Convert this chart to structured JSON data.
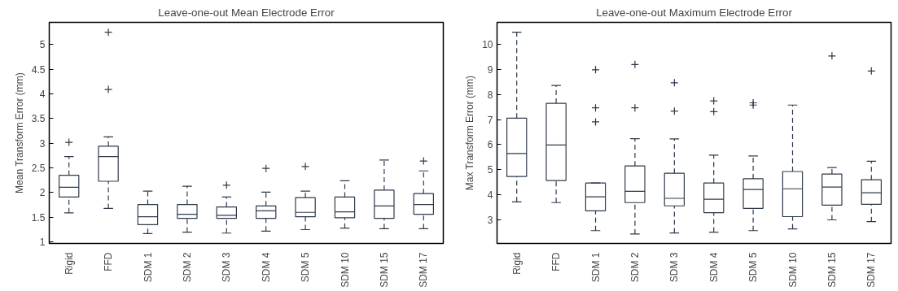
{
  "chart_data": [
    {
      "type": "box",
      "title": "Leave-one-out Mean Electrode Error",
      "ylabel": "Mean Transform Error (mm)",
      "categories": [
        "Rigid",
        "FFD",
        "SDM 1",
        "SDM 2",
        "SDM 3",
        "SDM 4",
        "SDM 5",
        "SDM 10",
        "SDM 15",
        "SDM 17"
      ],
      "ylim": [
        0.97,
        5.45
      ],
      "yticks": [
        1,
        1.5,
        2,
        2.5,
        3,
        3.5,
        4,
        4.5,
        5
      ],
      "grid": false,
      "marker": "cross",
      "color": "#2e3a4a",
      "boxes": [
        {
          "low": 1.59,
          "q1": 1.91,
          "median": 2.11,
          "q3": 2.35,
          "high": 2.73,
          "outliers": [
            3.02
          ]
        },
        {
          "low": 1.68,
          "q1": 2.23,
          "median": 2.73,
          "q3": 2.94,
          "high": 3.13,
          "outliers": [
            4.09,
            5.25
          ]
        },
        {
          "low": 1.17,
          "q1": 1.35,
          "median": 1.51,
          "q3": 1.76,
          "high": 2.03
        },
        {
          "low": 1.2,
          "q1": 1.48,
          "median": 1.56,
          "q3": 1.76,
          "high": 2.13
        },
        {
          "low": 1.18,
          "q1": 1.48,
          "median": 1.54,
          "q3": 1.71,
          "high": 1.91,
          "outliers": [
            2.15
          ]
        },
        {
          "low": 1.22,
          "q1": 1.48,
          "median": 1.63,
          "q3": 1.73,
          "high": 2.01,
          "outliers": [
            2.49
          ]
        },
        {
          "low": 1.25,
          "q1": 1.51,
          "median": 1.6,
          "q3": 1.9,
          "high": 2.03,
          "outliers": [
            2.53
          ]
        },
        {
          "low": 1.28,
          "q1": 1.49,
          "median": 1.61,
          "q3": 1.91,
          "high": 2.24
        },
        {
          "low": 1.27,
          "q1": 1.48,
          "median": 1.73,
          "q3": 2.05,
          "high": 2.66
        },
        {
          "low": 1.27,
          "q1": 1.56,
          "median": 1.76,
          "q3": 1.98,
          "high": 2.44,
          "outliers": [
            2.64
          ]
        }
      ]
    },
    {
      "type": "box",
      "title": "Leave-one-out Maximum Electrode Error",
      "ylabel": "Max Transform Error (mm)",
      "categories": [
        "Rigid",
        "FFD",
        "SDM 1",
        "SDM 2",
        "SDM 3",
        "SDM 4",
        "SDM 5",
        "SDM 10",
        "SDM 15",
        "SDM 17"
      ],
      "ylim": [
        2.06,
        10.88
      ],
      "yticks": [
        3,
        4,
        5,
        6,
        7,
        8,
        9,
        10
      ],
      "grid": false,
      "marker": "cross",
      "color": "#2e3a4a",
      "boxes": [
        {
          "low": 3.72,
          "q1": 4.73,
          "median": 5.65,
          "q3": 7.06,
          "high": 10.49
        },
        {
          "low": 3.69,
          "q1": 4.57,
          "median": 5.99,
          "q3": 7.65,
          "high": 8.36
        },
        {
          "low": 2.57,
          "q1": 3.36,
          "median": 3.92,
          "q3": 4.47,
          "high": 4.47,
          "outliers": [
            6.91,
            7.47,
            8.99
          ]
        },
        {
          "low": 2.44,
          "q1": 3.69,
          "median": 4.14,
          "q3": 5.15,
          "high": 6.24,
          "outliers": [
            7.47,
            9.2
          ]
        },
        {
          "low": 2.48,
          "q1": 3.56,
          "median": 3.86,
          "q3": 4.86,
          "high": 6.23,
          "outliers": [
            7.34,
            8.47
          ]
        },
        {
          "low": 2.51,
          "q1": 3.29,
          "median": 3.82,
          "q3": 4.47,
          "high": 5.58,
          "outliers": [
            7.32,
            7.75
          ]
        },
        {
          "low": 2.57,
          "q1": 3.46,
          "median": 4.21,
          "q3": 4.64,
          "high": 5.55,
          "outliers": [
            7.58,
            7.67
          ]
        },
        {
          "low": 2.64,
          "q1": 3.13,
          "median": 4.24,
          "q3": 4.93,
          "high": 7.58
        },
        {
          "low": 3.0,
          "q1": 3.59,
          "median": 4.31,
          "q3": 4.83,
          "high": 5.09,
          "outliers": [
            9.54
          ]
        },
        {
          "low": 2.93,
          "q1": 3.62,
          "median": 4.08,
          "q3": 4.6,
          "high": 5.34,
          "outliers": [
            8.94
          ]
        }
      ]
    }
  ]
}
